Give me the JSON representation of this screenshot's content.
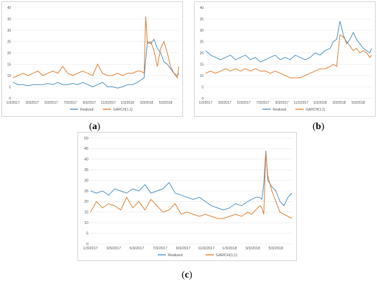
{
  "colors": {
    "realized": "#4a8fc1",
    "garch": "#e07b2b",
    "grid": "#e6e6e6",
    "axis_text": "#555555"
  },
  "captions": {
    "a": "a",
    "b": "b",
    "c": "c"
  },
  "chart_data": [
    {
      "id": "a",
      "type": "line",
      "ylim": [
        0,
        40
      ],
      "yticks": [
        0,
        5,
        10,
        15,
        20,
        25,
        30,
        35,
        40
      ],
      "xlim": [
        0,
        1
      ],
      "x_tick_labels": [
        "1/3/2017",
        "3/3/2017",
        "5/3/2017",
        "7/3/2017",
        "9/3/2017",
        "11/3/2017",
        "1/3/2018",
        "3/3/2018",
        "5/3/2018"
      ],
      "series": [
        {
          "name": "Realized",
          "color_key": "realized",
          "x": [
            0,
            0.03,
            0.06,
            0.09,
            0.12,
            0.15,
            0.18,
            0.21,
            0.24,
            0.27,
            0.3,
            0.33,
            0.36,
            0.39,
            0.42,
            0.45,
            0.48,
            0.51,
            0.54,
            0.57,
            0.6,
            0.63,
            0.66,
            0.69,
            0.72,
            0.75,
            0.77,
            0.79,
            0.81,
            0.83,
            0.85,
            0.87,
            0.89,
            0.91,
            0.93,
            0.95,
            0.97,
            0.99,
            1.0
          ],
          "y": [
            7,
            6,
            6,
            5.5,
            6,
            6,
            6,
            6.5,
            6,
            7,
            6,
            6,
            6.5,
            6,
            7,
            6,
            5,
            6,
            7,
            5,
            5,
            4.5,
            5,
            6,
            6,
            7,
            8,
            9,
            25,
            24,
            26,
            22,
            20,
            16,
            15,
            13,
            11,
            10,
            11
          ]
        },
        {
          "name": "GARCH(1,1)",
          "color_key": "garch",
          "x": [
            0,
            0.03,
            0.06,
            0.09,
            0.12,
            0.15,
            0.18,
            0.21,
            0.24,
            0.27,
            0.3,
            0.33,
            0.36,
            0.39,
            0.42,
            0.45,
            0.48,
            0.51,
            0.54,
            0.57,
            0.6,
            0.63,
            0.66,
            0.69,
            0.72,
            0.75,
            0.77,
            0.79,
            0.8,
            0.81,
            0.83,
            0.85,
            0.87,
            0.89,
            0.91,
            0.93,
            0.95,
            0.97,
            0.99,
            1.0
          ],
          "y": [
            9,
            10,
            11,
            10,
            11,
            12,
            10,
            11,
            12,
            11,
            14,
            11,
            10,
            11,
            12,
            11,
            10,
            15,
            11,
            10,
            10,
            11,
            10,
            11,
            11,
            12,
            12,
            11,
            36,
            24,
            25,
            21,
            14,
            22,
            25,
            20,
            14,
            11,
            9,
            14
          ]
        }
      ]
    },
    {
      "id": "b",
      "type": "line",
      "ylim": [
        0,
        40
      ],
      "yticks": [
        0,
        5,
        10,
        15,
        20,
        25,
        30,
        35,
        40
      ],
      "xlim": [
        0,
        1
      ],
      "x_tick_labels": [
        "1/3/2017",
        "3/3/2017",
        "5/3/2017",
        "7/3/2017",
        "9/3/2017",
        "11/3/2017",
        "1/3/2018",
        "3/3/2018",
        "5/3/2018"
      ],
      "series": [
        {
          "name": "Realized",
          "color_key": "realized",
          "x": [
            0,
            0.03,
            0.06,
            0.09,
            0.12,
            0.15,
            0.18,
            0.21,
            0.24,
            0.27,
            0.3,
            0.33,
            0.36,
            0.39,
            0.42,
            0.45,
            0.48,
            0.51,
            0.54,
            0.57,
            0.6,
            0.63,
            0.66,
            0.69,
            0.72,
            0.75,
            0.77,
            0.79,
            0.81,
            0.83,
            0.85,
            0.87,
            0.89,
            0.91,
            0.93,
            0.95,
            0.97,
            0.99,
            1.0
          ],
          "y": [
            21,
            19,
            18,
            17,
            18,
            19,
            17,
            18,
            19,
            17,
            18,
            16,
            17,
            18,
            19,
            17,
            18,
            17,
            19,
            18,
            17,
            18,
            20,
            19,
            21,
            22,
            25,
            26,
            34,
            28,
            24,
            26,
            29,
            26,
            24,
            22,
            21,
            20,
            22
          ]
        },
        {
          "name": "GARCH(1,1)",
          "color_key": "garch",
          "x": [
            0,
            0.03,
            0.06,
            0.09,
            0.12,
            0.15,
            0.18,
            0.21,
            0.24,
            0.27,
            0.3,
            0.33,
            0.36,
            0.39,
            0.42,
            0.45,
            0.48,
            0.51,
            0.54,
            0.57,
            0.6,
            0.63,
            0.66,
            0.69,
            0.72,
            0.75,
            0.77,
            0.79,
            0.81,
            0.83,
            0.85,
            0.87,
            0.89,
            0.91,
            0.93,
            0.95,
            0.97,
            0.99,
            1.0
          ],
          "y": [
            11,
            12,
            11,
            12,
            13,
            12,
            13,
            12,
            13,
            12,
            13,
            12,
            12,
            11,
            12,
            11,
            10,
            9,
            9,
            9,
            10,
            11,
            12,
            13,
            13,
            14,
            15,
            14,
            28,
            27,
            25,
            23,
            21,
            22,
            20,
            21,
            20,
            18,
            19
          ]
        }
      ]
    },
    {
      "id": "c",
      "type": "line",
      "ylim": [
        0,
        50
      ],
      "yticks": [
        0,
        5,
        10,
        15,
        20,
        25,
        30,
        35,
        40,
        45,
        50
      ],
      "xlim": [
        0,
        1
      ],
      "x_tick_labels": [
        "1/3/2017",
        "3/3/2017",
        "5/3/2017",
        "7/3/2017",
        "9/3/2017",
        "11/3/2017",
        "1/3/2018",
        "3/3/2018",
        "5/3/2018"
      ],
      "legend": "bottom",
      "series": [
        {
          "name": "Realized",
          "color_key": "realized",
          "x": [
            0,
            0.03,
            0.06,
            0.09,
            0.12,
            0.15,
            0.18,
            0.21,
            0.24,
            0.27,
            0.3,
            0.33,
            0.36,
            0.39,
            0.42,
            0.45,
            0.48,
            0.51,
            0.54,
            0.57,
            0.6,
            0.63,
            0.66,
            0.69,
            0.72,
            0.75,
            0.78,
            0.8,
            0.82,
            0.84,
            0.85,
            0.86,
            0.87,
            0.88,
            0.9,
            0.92,
            0.94,
            0.96,
            0.98,
            1.0
          ],
          "y": [
            25,
            24,
            25,
            23,
            26,
            25,
            24,
            26,
            25,
            28,
            24,
            25,
            26,
            29,
            24,
            23,
            22,
            21,
            22,
            20,
            18,
            17,
            16,
            17,
            19,
            18,
            20,
            21,
            22,
            22,
            21,
            28,
            44,
            30,
            27,
            25,
            20,
            18,
            22,
            24
          ]
        },
        {
          "name": "GARCH(1,1)",
          "color_key": "garch",
          "x": [
            0,
            0.03,
            0.06,
            0.09,
            0.12,
            0.15,
            0.18,
            0.21,
            0.24,
            0.27,
            0.3,
            0.33,
            0.36,
            0.39,
            0.42,
            0.45,
            0.48,
            0.51,
            0.54,
            0.57,
            0.6,
            0.63,
            0.66,
            0.69,
            0.72,
            0.75,
            0.78,
            0.8,
            0.82,
            0.84,
            0.85,
            0.86,
            0.87,
            0.88,
            0.9,
            0.92,
            0.94,
            0.96,
            0.98,
            1.0
          ],
          "y": [
            15,
            20,
            17,
            19,
            18,
            16,
            22,
            17,
            20,
            16,
            21,
            18,
            15,
            16,
            19,
            14,
            15,
            14,
            13,
            14,
            13,
            12,
            12,
            13,
            14,
            13,
            15,
            14,
            16,
            18,
            17,
            14,
            43,
            32,
            25,
            20,
            15,
            14,
            13,
            12
          ]
        }
      ]
    }
  ]
}
